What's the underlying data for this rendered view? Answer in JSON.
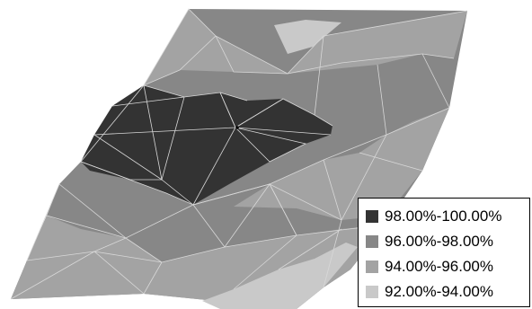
{
  "chart_data": {
    "type": "heatmap",
    "legend": {
      "placement": "bottom-right",
      "entries": [
        {
          "label": "98.00%-100.00%",
          "color": "#333333"
        },
        {
          "label": "96.00%-98.00%",
          "color": "#878787"
        },
        {
          "label": "94.00%-96.00%",
          "color": "#a3a3a3"
        },
        {
          "label": "92.00%-94.00%",
          "color": "#c9c9c9"
        }
      ]
    }
  }
}
